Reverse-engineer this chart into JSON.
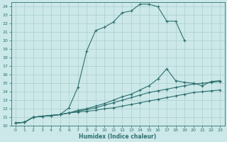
{
  "title": "",
  "xlabel": "Humidex (Indice chaleur)",
  "ylabel": "",
  "bg_color": "#cce8e8",
  "line_color": "#2d7070",
  "grid_color": "#aacfcf",
  "xlim": [
    -0.5,
    23.5
  ],
  "ylim": [
    10,
    24.5
  ],
  "xticks": [
    0,
    1,
    2,
    3,
    4,
    5,
    6,
    7,
    8,
    9,
    10,
    11,
    12,
    13,
    14,
    15,
    16,
    17,
    18,
    19,
    20,
    21,
    22,
    23
  ],
  "yticks": [
    10,
    11,
    12,
    13,
    14,
    15,
    16,
    17,
    18,
    19,
    20,
    21,
    22,
    23,
    24
  ],
  "line1_x": [
    0,
    1,
    2,
    3,
    4,
    5,
    6,
    7,
    8,
    9,
    10,
    11,
    12,
    13,
    14,
    15,
    16,
    17,
    18,
    19
  ],
  "line1_y": [
    10.3,
    10.4,
    11.0,
    11.1,
    11.2,
    11.3,
    12.1,
    14.5,
    18.8,
    21.2,
    21.6,
    22.2,
    23.3,
    23.5,
    24.3,
    24.3,
    24.0,
    22.3,
    22.3,
    20.0
  ],
  "line2_x": [
    0,
    1,
    2,
    3,
    4,
    5,
    6,
    7,
    8,
    9,
    10,
    11,
    12,
    13,
    14,
    15,
    16,
    17,
    18,
    19,
    20,
    21,
    22,
    23
  ],
  "line2_y": [
    10.3,
    10.4,
    11.0,
    11.1,
    11.2,
    11.3,
    11.5,
    11.8,
    12.0,
    12.3,
    12.6,
    13.0,
    13.4,
    13.7,
    14.2,
    14.7,
    15.5,
    16.7,
    15.3,
    15.1,
    15.0,
    14.7,
    15.2,
    15.3
  ],
  "line3_x": [
    0,
    1,
    2,
    3,
    4,
    5,
    6,
    7,
    8,
    9,
    10,
    11,
    12,
    13,
    14,
    15,
    16,
    17,
    18,
    19,
    20,
    21,
    22,
    23
  ],
  "line3_y": [
    10.3,
    10.4,
    11.0,
    11.1,
    11.2,
    11.3,
    11.5,
    11.7,
    11.9,
    12.1,
    12.4,
    12.7,
    13.0,
    13.3,
    13.6,
    13.9,
    14.1,
    14.3,
    14.5,
    14.7,
    14.9,
    15.0,
    15.1,
    15.2
  ],
  "line4_x": [
    0,
    1,
    2,
    3,
    4,
    5,
    6,
    7,
    8,
    9,
    10,
    11,
    12,
    13,
    14,
    15,
    16,
    17,
    18,
    19,
    20,
    21,
    22,
    23
  ],
  "line4_y": [
    10.3,
    10.4,
    11.0,
    11.1,
    11.2,
    11.3,
    11.5,
    11.6,
    11.7,
    11.8,
    12.0,
    12.1,
    12.3,
    12.5,
    12.7,
    12.9,
    13.1,
    13.3,
    13.5,
    13.7,
    13.9,
    14.0,
    14.1,
    14.2
  ]
}
